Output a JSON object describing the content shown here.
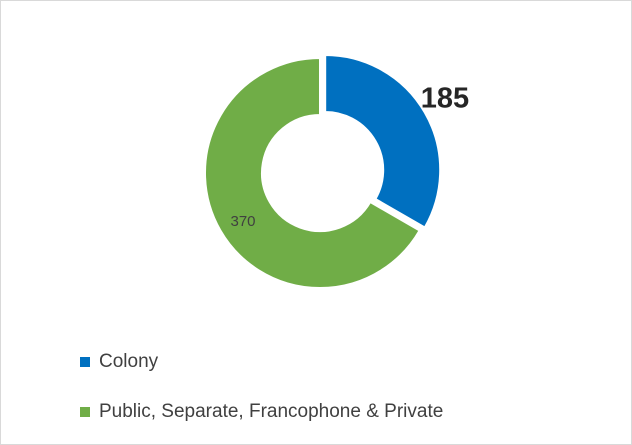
{
  "chart_data": {
    "type": "donut",
    "categories": [
      "Colony",
      "Public, Separate, Francophone & Private"
    ],
    "values": [
      185,
      370
    ],
    "colors": [
      "#0070c0",
      "#70ad47"
    ],
    "legend": "bottom-left"
  }
}
